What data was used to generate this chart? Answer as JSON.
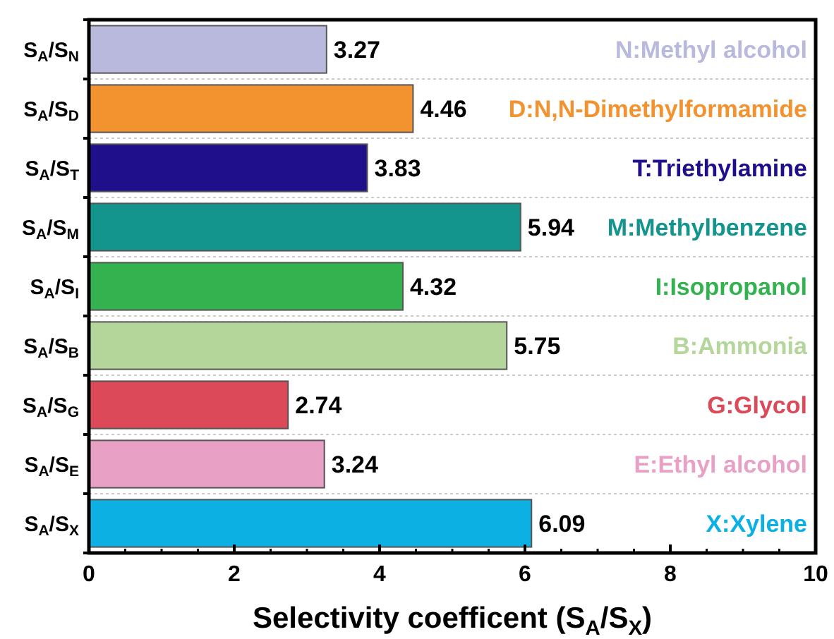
{
  "chart_data": {
    "type": "bar",
    "orientation": "horizontal",
    "categories": [
      "S$_{A}$/S$_{N}$",
      "S$_{A}$/S$_{D}$",
      "S$_{A}$/S$_{T}$",
      "S$_{A}$/S$_{M}$",
      "S$_{A}$/S$_{I}$",
      "S$_{A}$/S$_{B}$",
      "S$_{A}$/S$_{G}$",
      "S$_{A}$/S$_{E}$",
      "S$_{A}$/S$_{X}$"
    ],
    "values": [
      3.27,
      4.46,
      3.83,
      5.94,
      4.32,
      5.75,
      2.74,
      3.24,
      6.09
    ],
    "colors": [
      "#b9b9dd",
      "#f3932f",
      "#1f0f8a",
      "#13958e",
      "#33b24f",
      "#b5d69b",
      "#dc4a59",
      "#e8a0c5",
      "#0db0e3"
    ],
    "xlabel": "Selectivity coefficent (S$_{A}$/S$_{X}$)",
    "xlim": [
      0,
      10
    ],
    "xticks": [
      0,
      2,
      4,
      6,
      8,
      10
    ],
    "data_labels": true,
    "grid": "y",
    "annotations": [
      "N:Methyl alcohol",
      "D:N,N-Dimethylformamide",
      "T:Triethylamine",
      "M:Methylbenzene",
      "I:Isopropanol",
      "B:Ammonia",
      "G:Glycol",
      "E:Ethyl alcohol",
      "X:Xylene"
    ]
  }
}
